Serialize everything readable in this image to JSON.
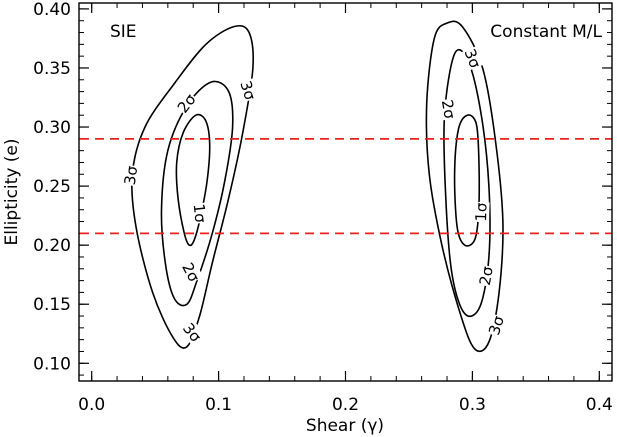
{
  "chart_data": {
    "type": "contour",
    "xlabel": "Shear (γ)",
    "ylabel": "Ellipticity (e)",
    "xlim": [
      -0.01,
      0.41
    ],
    "ylim": [
      0.085,
      0.405
    ],
    "xticks": [
      0.0,
      0.1,
      0.2,
      0.3,
      0.4
    ],
    "xtick_labels": [
      "0.0",
      "0.1",
      "0.2",
      "0.3",
      "0.4"
    ],
    "yticks": [
      0.1,
      0.15,
      0.2,
      0.25,
      0.3,
      0.35,
      0.4
    ],
    "ytick_labels": [
      "0.10",
      "0.15",
      "0.20",
      "0.25",
      "0.30",
      "0.35",
      "0.40"
    ],
    "panels": [
      {
        "label": "SIE",
        "contours": [
          {
            "level": "1σ",
            "points": [
              [
                0.082,
                0.31
              ],
              [
                0.09,
                0.305
              ],
              [
                0.093,
                0.285
              ],
              [
                0.091,
                0.255
              ],
              [
                0.086,
                0.225
              ],
              [
                0.081,
                0.205
              ],
              [
                0.077,
                0.2
              ],
              [
                0.073,
                0.21
              ],
              [
                0.068,
                0.24
              ],
              [
                0.067,
                0.27
              ],
              [
                0.072,
                0.295
              ],
              [
                0.082,
                0.31
              ]
            ]
          },
          {
            "level": "2σ",
            "points": [
              [
                0.094,
                0.338
              ],
              [
                0.108,
                0.33
              ],
              [
                0.111,
                0.3
              ],
              [
                0.105,
                0.255
              ],
              [
                0.095,
                0.21
              ],
              [
                0.083,
                0.17
              ],
              [
                0.075,
                0.15
              ],
              [
                0.065,
                0.155
              ],
              [
                0.058,
                0.185
              ],
              [
                0.055,
                0.23
              ],
              [
                0.06,
                0.28
              ],
              [
                0.075,
                0.318
              ],
              [
                0.094,
                0.338
              ]
            ]
          },
          {
            "level": "3σ",
            "points": [
              [
                0.112,
                0.385
              ],
              [
                0.124,
                0.38
              ],
              [
                0.127,
                0.35
              ],
              [
                0.119,
                0.295
              ],
              [
                0.108,
                0.24
              ],
              [
                0.095,
                0.185
              ],
              [
                0.085,
                0.14
              ],
              [
                0.075,
                0.114
              ],
              [
                0.064,
                0.122
              ],
              [
                0.048,
                0.16
              ],
              [
                0.035,
                0.215
              ],
              [
                0.032,
                0.26
              ],
              [
                0.042,
                0.3
              ],
              [
                0.066,
                0.338
              ],
              [
                0.09,
                0.37
              ],
              [
                0.112,
                0.385
              ]
            ]
          }
        ],
        "contour_labels": [
          {
            "text": "1σ",
            "x": 0.085,
            "y": 0.227,
            "angle": 84
          },
          {
            "text": "2σ",
            "x": 0.075,
            "y": 0.32,
            "angle": -52
          },
          {
            "text": "2σ",
            "x": 0.078,
            "y": 0.177,
            "angle": 62
          },
          {
            "text": "3σ",
            "x": 0.123,
            "y": 0.331,
            "angle": 72
          },
          {
            "text": "3σ",
            "x": 0.031,
            "y": 0.259,
            "angle": -82
          },
          {
            "text": "3σ",
            "x": 0.079,
            "y": 0.126,
            "angle": 52
          }
        ]
      },
      {
        "label": "Constant M/L",
        "contours": [
          {
            "level": "1σ",
            "points": [
              [
                0.296,
                0.31
              ],
              [
                0.303,
                0.303
              ],
              [
                0.305,
                0.275
              ],
              [
                0.305,
                0.23
              ],
              [
                0.302,
                0.205
              ],
              [
                0.294,
                0.2
              ],
              [
                0.288,
                0.215
              ],
              [
                0.286,
                0.26
              ],
              [
                0.289,
                0.298
              ],
              [
                0.296,
                0.31
              ]
            ]
          },
          {
            "level": "2σ",
            "points": [
              [
                0.286,
                0.362
              ],
              [
                0.297,
                0.355
              ],
              [
                0.307,
                0.31
              ],
              [
                0.313,
                0.25
              ],
              [
                0.313,
                0.19
              ],
              [
                0.306,
                0.148
              ],
              [
                0.294,
                0.142
              ],
              [
                0.284,
                0.175
              ],
              [
                0.279,
                0.24
              ],
              [
                0.278,
                0.31
              ],
              [
                0.286,
                0.362
              ]
            ]
          },
          {
            "level": "3σ",
            "points": [
              [
                0.28,
                0.388
              ],
              [
                0.292,
                0.385
              ],
              [
                0.308,
                0.35
              ],
              [
                0.318,
                0.29
              ],
              [
                0.324,
                0.22
              ],
              [
                0.321,
                0.16
              ],
              [
                0.313,
                0.118
              ],
              [
                0.302,
                0.112
              ],
              [
                0.291,
                0.14
              ],
              [
                0.276,
                0.2
              ],
              [
                0.266,
                0.26
              ],
              [
                0.264,
                0.32
              ],
              [
                0.27,
                0.375
              ],
              [
                0.28,
                0.388
              ]
            ]
          }
        ],
        "contour_labels": [
          {
            "text": "1σ",
            "x": 0.307,
            "y": 0.228,
            "angle": -88
          },
          {
            "text": "2σ",
            "x": 0.281,
            "y": 0.315,
            "angle": 80
          },
          {
            "text": "2σ",
            "x": 0.311,
            "y": 0.174,
            "angle": -80
          },
          {
            "text": "3σ",
            "x": 0.3,
            "y": 0.358,
            "angle": 68
          },
          {
            "text": "3σ",
            "x": 0.319,
            "y": 0.132,
            "angle": -72
          }
        ]
      }
    ],
    "reference_lines": [
      {
        "orientation": "horizontal",
        "y": 0.29,
        "color": "#e8231c",
        "style": "dashed"
      },
      {
        "orientation": "horizontal",
        "y": 0.21,
        "color": "#e8231c",
        "style": "dashed"
      }
    ],
    "grid": false,
    "line_color": "#000000"
  }
}
